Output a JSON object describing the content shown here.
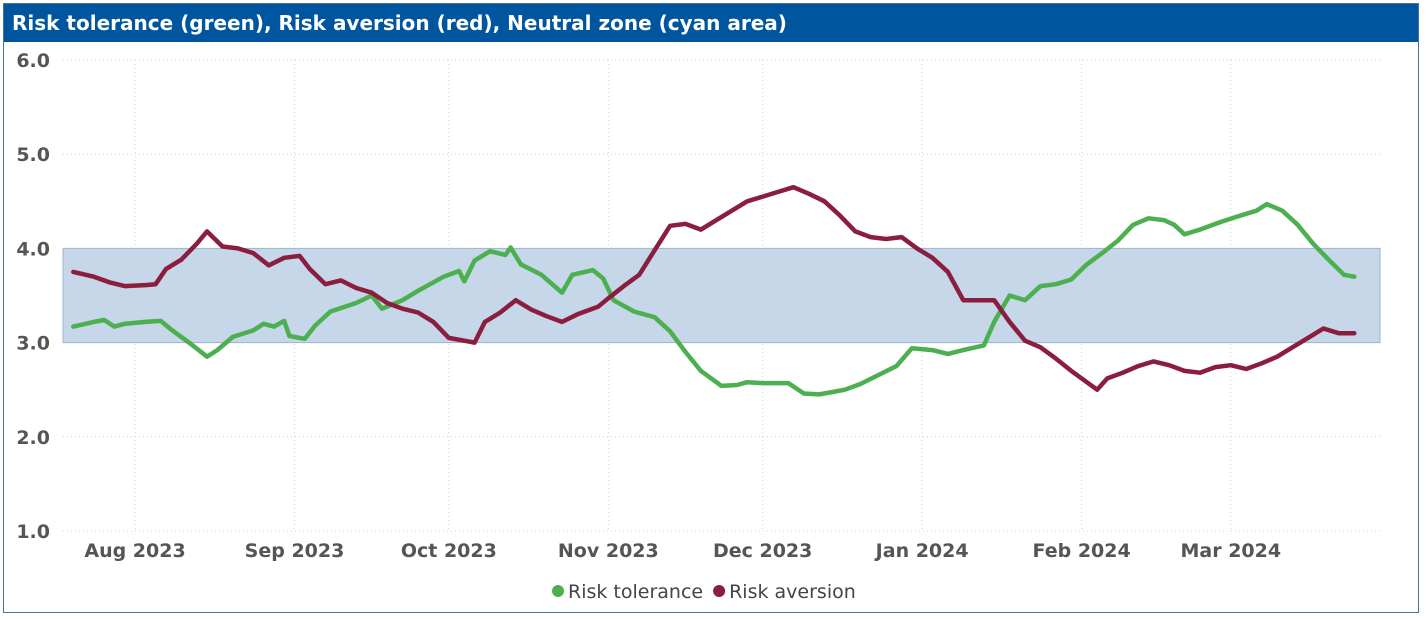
{
  "header": {
    "title": "Risk tolerance (green), Risk aversion (red), Neutral zone (cyan area)"
  },
  "colors": {
    "green": "#4caf50",
    "red": "#8b1e3f",
    "band": "#c5d7e8",
    "header_bg": "#00559f"
  },
  "chart_data": {
    "type": "line",
    "title": "Risk tolerance (green), Risk aversion (red), Neutral zone (cyan area)",
    "xlim": [
      "2023-07-18",
      "2024-03-30"
    ],
    "ylim": [
      1.0,
      6.0
    ],
    "y_ticks": [
      "1.0",
      "2.0",
      "3.0",
      "4.0",
      "5.0",
      "6.0"
    ],
    "x_ticks": [
      {
        "label": "Aug 2023",
        "date": "2023-08-01"
      },
      {
        "label": "Sep 2023",
        "date": "2023-09-01"
      },
      {
        "label": "Oct 2023",
        "date": "2023-10-01"
      },
      {
        "label": "Nov 2023",
        "date": "2023-11-01"
      },
      {
        "label": "Dec 2023",
        "date": "2023-12-01"
      },
      {
        "label": "Jan 2024",
        "date": "2024-01-01"
      },
      {
        "label": "Feb 2024",
        "date": "2024-02-01"
      },
      {
        "label": "Mar 2024",
        "date": "2024-03-01"
      }
    ],
    "neutral_zone": [
      3.0,
      4.0
    ],
    "grid": true,
    "legend": "bottom-center",
    "series": [
      {
        "name": "Risk tolerance",
        "color": "#4caf50",
        "points": [
          [
            "2023-07-20",
            3.17
          ],
          [
            "2023-07-24",
            3.22
          ],
          [
            "2023-07-26",
            3.24
          ],
          [
            "2023-07-28",
            3.17
          ],
          [
            "2023-07-30",
            3.2
          ],
          [
            "2023-08-03",
            3.22
          ],
          [
            "2023-08-06",
            3.23
          ],
          [
            "2023-08-08",
            3.14
          ],
          [
            "2023-08-12",
            2.98
          ],
          [
            "2023-08-15",
            2.85
          ],
          [
            "2023-08-17",
            2.92
          ],
          [
            "2023-08-20",
            3.06
          ],
          [
            "2023-08-24",
            3.13
          ],
          [
            "2023-08-26",
            3.2
          ],
          [
            "2023-08-28",
            3.17
          ],
          [
            "2023-08-30",
            3.23
          ],
          [
            "2023-08-31",
            3.07
          ],
          [
            "2023-09-03",
            3.04
          ],
          [
            "2023-09-05",
            3.18
          ],
          [
            "2023-09-08",
            3.33
          ],
          [
            "2023-09-13",
            3.42
          ],
          [
            "2023-09-16",
            3.5
          ],
          [
            "2023-09-18",
            3.36
          ],
          [
            "2023-09-22",
            3.45
          ],
          [
            "2023-09-25",
            3.55
          ],
          [
            "2023-09-30",
            3.7
          ],
          [
            "2023-10-03",
            3.76
          ],
          [
            "2023-10-04",
            3.65
          ],
          [
            "2023-10-06",
            3.87
          ],
          [
            "2023-10-09",
            3.97
          ],
          [
            "2023-10-12",
            3.93
          ],
          [
            "2023-10-13",
            4.01
          ],
          [
            "2023-10-15",
            3.83
          ],
          [
            "2023-10-19",
            3.72
          ],
          [
            "2023-10-23",
            3.53
          ],
          [
            "2023-10-25",
            3.72
          ],
          [
            "2023-10-29",
            3.77
          ],
          [
            "2023-10-31",
            3.68
          ],
          [
            "2023-11-02",
            3.45
          ],
          [
            "2023-11-06",
            3.33
          ],
          [
            "2023-11-10",
            3.27
          ],
          [
            "2023-11-13",
            3.12
          ],
          [
            "2023-11-16",
            2.9
          ],
          [
            "2023-11-19",
            2.7
          ],
          [
            "2023-11-23",
            2.54
          ],
          [
            "2023-11-26",
            2.55
          ],
          [
            "2023-11-28",
            2.58
          ],
          [
            "2023-12-01",
            2.57
          ],
          [
            "2023-12-06",
            2.57
          ],
          [
            "2023-12-09",
            2.46
          ],
          [
            "2023-12-12",
            2.45
          ],
          [
            "2023-12-15",
            2.48
          ],
          [
            "2023-12-17",
            2.5
          ],
          [
            "2023-12-20",
            2.56
          ],
          [
            "2023-12-24",
            2.67
          ],
          [
            "2023-12-27",
            2.75
          ],
          [
            "2023-12-30",
            2.94
          ],
          [
            "2024-01-03",
            2.92
          ],
          [
            "2024-01-06",
            2.88
          ],
          [
            "2024-01-09",
            2.92
          ],
          [
            "2024-01-13",
            2.97
          ],
          [
            "2024-01-15",
            3.22
          ],
          [
            "2024-01-18",
            3.5
          ],
          [
            "2024-01-21",
            3.45
          ],
          [
            "2024-01-24",
            3.6
          ],
          [
            "2024-01-27",
            3.62
          ],
          [
            "2024-01-30",
            3.67
          ],
          [
            "2024-02-02",
            3.83
          ],
          [
            "2024-02-05",
            3.95
          ],
          [
            "2024-02-08",
            4.08
          ],
          [
            "2024-02-11",
            4.25
          ],
          [
            "2024-02-14",
            4.32
          ],
          [
            "2024-02-17",
            4.3
          ],
          [
            "2024-02-19",
            4.25
          ],
          [
            "2024-02-21",
            4.15
          ],
          [
            "2024-02-24",
            4.2
          ],
          [
            "2024-02-28",
            4.28
          ],
          [
            "2024-03-03",
            4.35
          ],
          [
            "2024-03-06",
            4.4
          ],
          [
            "2024-03-08",
            4.47
          ],
          [
            "2024-03-11",
            4.4
          ],
          [
            "2024-03-14",
            4.25
          ],
          [
            "2024-03-17",
            4.05
          ],
          [
            "2024-03-20",
            3.88
          ],
          [
            "2024-03-23",
            3.72
          ],
          [
            "2024-03-25",
            3.7
          ]
        ]
      },
      {
        "name": "Risk aversion",
        "color": "#8b1e3f",
        "points": [
          [
            "2023-07-20",
            3.75
          ],
          [
            "2023-07-24",
            3.7
          ],
          [
            "2023-07-27",
            3.64
          ],
          [
            "2023-07-30",
            3.6
          ],
          [
            "2023-08-03",
            3.61
          ],
          [
            "2023-08-05",
            3.62
          ],
          [
            "2023-08-07",
            3.78
          ],
          [
            "2023-08-10",
            3.88
          ],
          [
            "2023-08-13",
            4.05
          ],
          [
            "2023-08-15",
            4.18
          ],
          [
            "2023-08-18",
            4.02
          ],
          [
            "2023-08-21",
            4.0
          ],
          [
            "2023-08-24",
            3.95
          ],
          [
            "2023-08-27",
            3.82
          ],
          [
            "2023-08-30",
            3.9
          ],
          [
            "2023-09-02",
            3.92
          ],
          [
            "2023-09-04",
            3.78
          ],
          [
            "2023-09-07",
            3.62
          ],
          [
            "2023-09-10",
            3.66
          ],
          [
            "2023-09-13",
            3.58
          ],
          [
            "2023-09-16",
            3.53
          ],
          [
            "2023-09-19",
            3.42
          ],
          [
            "2023-09-22",
            3.36
          ],
          [
            "2023-09-25",
            3.32
          ],
          [
            "2023-09-28",
            3.22
          ],
          [
            "2023-10-01",
            3.05
          ],
          [
            "2023-10-04",
            3.02
          ],
          [
            "2023-10-06",
            3.0
          ],
          [
            "2023-10-08",
            3.22
          ],
          [
            "2023-10-11",
            3.32
          ],
          [
            "2023-10-14",
            3.45
          ],
          [
            "2023-10-17",
            3.35
          ],
          [
            "2023-10-20",
            3.28
          ],
          [
            "2023-10-23",
            3.22
          ],
          [
            "2023-10-26",
            3.3
          ],
          [
            "2023-10-30",
            3.38
          ],
          [
            "2023-11-01",
            3.47
          ],
          [
            "2023-11-04",
            3.6
          ],
          [
            "2023-11-07",
            3.72
          ],
          [
            "2023-11-10",
            3.98
          ],
          [
            "2023-11-13",
            4.24
          ],
          [
            "2023-11-16",
            4.26
          ],
          [
            "2023-11-19",
            4.2
          ],
          [
            "2023-11-22",
            4.3
          ],
          [
            "2023-11-25",
            4.4
          ],
          [
            "2023-11-28",
            4.5
          ],
          [
            "2023-12-01",
            4.55
          ],
          [
            "2023-12-04",
            4.6
          ],
          [
            "2023-12-07",
            4.65
          ],
          [
            "2023-12-10",
            4.58
          ],
          [
            "2023-12-13",
            4.5
          ],
          [
            "2023-12-16",
            4.35
          ],
          [
            "2023-12-19",
            4.18
          ],
          [
            "2023-12-22",
            4.12
          ],
          [
            "2023-12-25",
            4.1
          ],
          [
            "2023-12-28",
            4.12
          ],
          [
            "2023-12-31",
            4.0
          ],
          [
            "2024-01-03",
            3.9
          ],
          [
            "2024-01-06",
            3.75
          ],
          [
            "2024-01-09",
            3.45
          ],
          [
            "2024-01-12",
            3.45
          ],
          [
            "2024-01-15",
            3.45
          ],
          [
            "2024-01-18",
            3.22
          ],
          [
            "2024-01-21",
            3.02
          ],
          [
            "2024-01-24",
            2.95
          ],
          [
            "2024-01-27",
            2.83
          ],
          [
            "2024-01-30",
            2.7
          ],
          [
            "2024-02-02",
            2.58
          ],
          [
            "2024-02-04",
            2.5
          ],
          [
            "2024-02-06",
            2.62
          ],
          [
            "2024-02-09",
            2.68
          ],
          [
            "2024-02-12",
            2.75
          ],
          [
            "2024-02-15",
            2.8
          ],
          [
            "2024-02-18",
            2.76
          ],
          [
            "2024-02-21",
            2.7
          ],
          [
            "2024-02-24",
            2.68
          ],
          [
            "2024-02-27",
            2.74
          ],
          [
            "2024-03-01",
            2.76
          ],
          [
            "2024-03-04",
            2.72
          ],
          [
            "2024-03-07",
            2.78
          ],
          [
            "2024-03-10",
            2.85
          ],
          [
            "2024-03-13",
            2.95
          ],
          [
            "2024-03-16",
            3.05
          ],
          [
            "2024-03-19",
            3.15
          ],
          [
            "2024-03-22",
            3.1
          ],
          [
            "2024-03-25",
            3.1
          ]
        ]
      }
    ]
  }
}
